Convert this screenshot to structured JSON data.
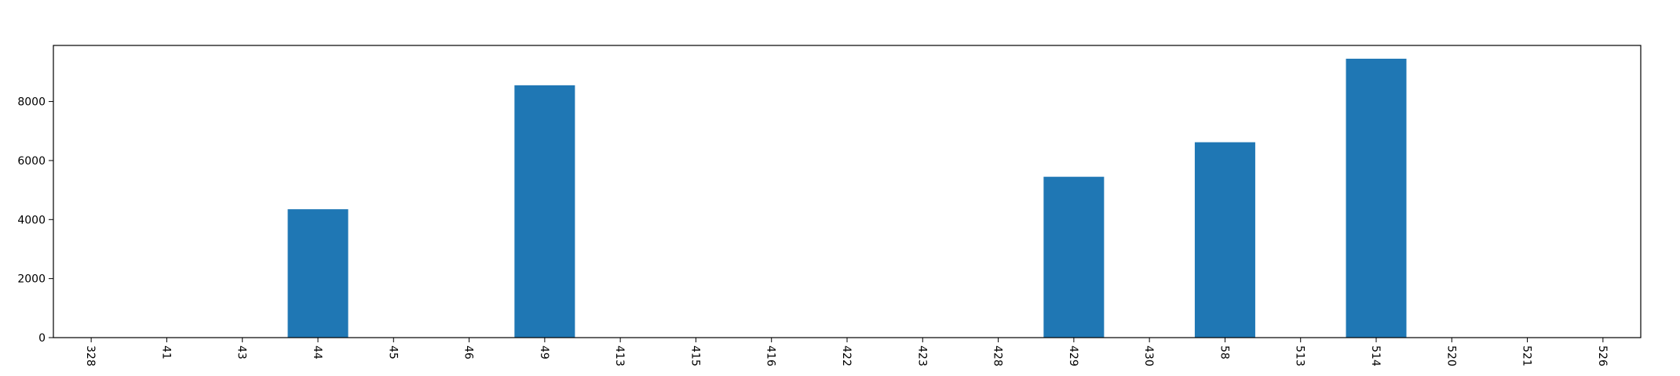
{
  "chart_data": {
    "type": "bar",
    "categories": [
      "328",
      "41",
      "43",
      "44",
      "45",
      "46",
      "49",
      "413",
      "415",
      "416",
      "422",
      "423",
      "428",
      "429",
      "430",
      "58",
      "513",
      "514",
      "520",
      "521",
      "526"
    ],
    "values": [
      0,
      0,
      0,
      4350,
      0,
      0,
      8550,
      0,
      0,
      0,
      0,
      0,
      0,
      5450,
      0,
      6620,
      0,
      9450,
      0,
      0,
      0
    ],
    "yticks": [
      "0",
      "2000",
      "4000",
      "6000",
      "8000"
    ],
    "ylim": [
      0,
      9900
    ],
    "bar_color": "#1f77b4",
    "title": "",
    "xlabel": "",
    "ylabel": "",
    "grid": false,
    "legend": "none"
  }
}
